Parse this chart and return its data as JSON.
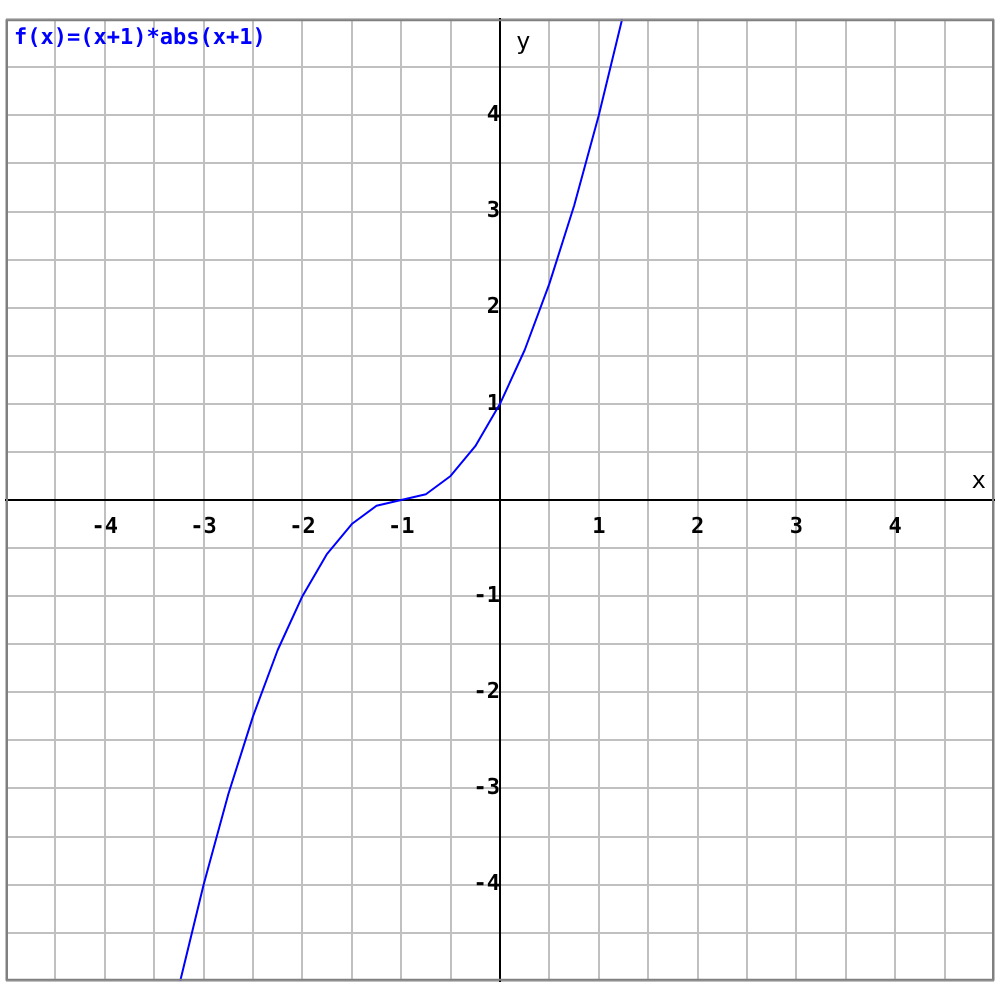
{
  "chart_data": {
    "type": "line",
    "title": "f(x)=(x+1)*abs(x+1)",
    "xlabel": "x",
    "ylabel": "y",
    "x": [
      -3.236,
      -3,
      -2.75,
      -2.5,
      -2.25,
      -2,
      -1.75,
      -1.5,
      -1.25,
      -1,
      -0.75,
      -0.5,
      -0.25,
      0,
      0.25,
      0.5,
      0.75,
      1,
      1.236
    ],
    "series": [
      {
        "color": "#0000ff",
        "values": [
          -5,
          -4,
          -3.06,
          -2.25,
          -1.56,
          -1,
          -0.56,
          -0.25,
          -0.06,
          0,
          0.06,
          0.25,
          0.56,
          1,
          1.56,
          2.25,
          3.06,
          4,
          5
        ]
      }
    ],
    "xlim": [
      -5,
      5
    ],
    "ylim": [
      -5,
      5
    ],
    "xticks": [
      {
        "value": -5,
        "label": null
      },
      {
        "value": -4.5,
        "label": null
      },
      -4,
      {
        "value": -3.5,
        "label": null
      },
      -3,
      {
        "value": -2.5,
        "label": null
      },
      -2,
      {
        "value": -1.5,
        "label": null
      },
      -1,
      {
        "value": -0.5,
        "label": null
      },
      {
        "value": 0,
        "label": null
      },
      {
        "value": 0.5,
        "label": null
      },
      1,
      {
        "value": 1.5,
        "label": null
      },
      2,
      {
        "value": 2.5,
        "label": null
      },
      3,
      {
        "value": 3.5,
        "label": null
      },
      4,
      {
        "value": 4.5,
        "label": null
      },
      {
        "value": 5,
        "label": null
      }
    ],
    "yticks": [
      {
        "value": -5,
        "label": null
      },
      {
        "value": -4.5,
        "label": null
      },
      -4,
      {
        "value": -3.5,
        "label": null
      },
      -3,
      {
        "value": -2.5,
        "label": null
      },
      -2,
      {
        "value": -1.5,
        "label": null
      },
      -1,
      {
        "value": -0.5,
        "label": null
      },
      {
        "value": 0,
        "label": null
      },
      {
        "value": 0.5,
        "label": null
      },
      1,
      {
        "value": 1.5,
        "label": null
      },
      2,
      {
        "value": 2.5,
        "label": null
      },
      3,
      {
        "value": 3.5,
        "label": null
      },
      4,
      {
        "value": 4.5,
        "label": null
      },
      {
        "value": 5,
        "label": null
      }
    ],
    "grid": true,
    "marker": "none",
    "line_style": "solid"
  }
}
